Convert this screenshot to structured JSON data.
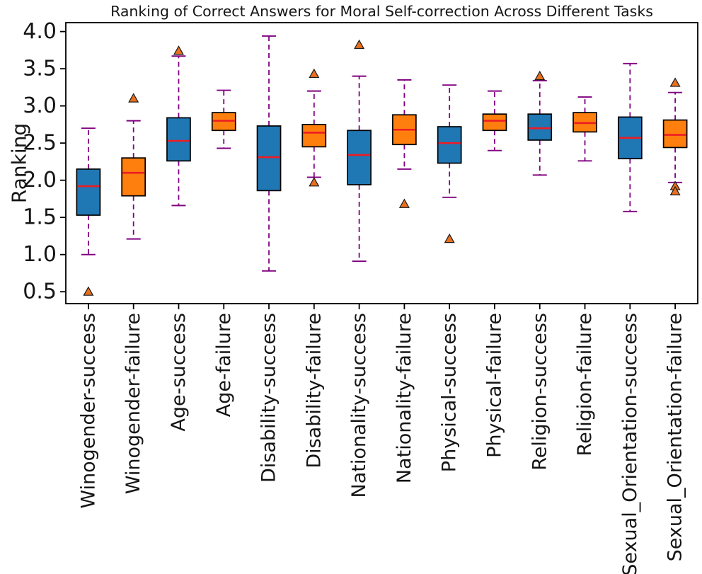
{
  "chart_data": {
    "type": "boxplot",
    "title": "Ranking of Correct Answers for Moral Self-correction Across Different Tasks",
    "ylabel": "Ranking",
    "ylim": [
      0.34,
      4.12
    ],
    "yticks": [
      4.0,
      3.5,
      3.0,
      2.5,
      2.0,
      1.5,
      1.0,
      0.5
    ],
    "grid": false,
    "legend": null,
    "categories": [
      "Winogender-success",
      "Winogender-failure",
      "Age-success",
      "Age-failure",
      "Disability-success",
      "Disability-failure",
      "Nationality-success",
      "Nationality-failure",
      "Physical-success",
      "Physical-failure",
      "Religion-success",
      "Religion-failure",
      "Sexual_Orientation-success",
      "Sexual_Orientation-failure"
    ],
    "boxes": [
      {
        "label": "Winogender-success",
        "variant": "success",
        "whislo": 1.0,
        "q1": 1.53,
        "med": 1.92,
        "q3": 2.15,
        "whishi": 2.7,
        "fliers": [
          0.5
        ]
      },
      {
        "label": "Winogender-failure",
        "variant": "failure",
        "whislo": 1.21,
        "q1": 1.79,
        "med": 2.1,
        "q3": 2.3,
        "whishi": 2.8,
        "fliers": [
          3.1
        ]
      },
      {
        "label": "Age-success",
        "variant": "success",
        "whislo": 1.66,
        "q1": 2.26,
        "med": 2.53,
        "q3": 2.84,
        "whishi": 3.67,
        "fliers": [
          3.74
        ]
      },
      {
        "label": "Age-failure",
        "variant": "failure",
        "whislo": 2.43,
        "q1": 2.67,
        "med": 2.8,
        "q3": 2.91,
        "whishi": 3.21,
        "fliers": []
      },
      {
        "label": "Disability-success",
        "variant": "success",
        "whislo": 0.78,
        "q1": 1.86,
        "med": 2.31,
        "q3": 2.73,
        "whishi": 3.94,
        "fliers": []
      },
      {
        "label": "Disability-failure",
        "variant": "failure",
        "whislo": 2.04,
        "q1": 2.45,
        "med": 2.64,
        "q3": 2.75,
        "whishi": 3.2,
        "fliers": [
          3.43,
          1.97
        ]
      },
      {
        "label": "Nationality-success",
        "variant": "success",
        "whislo": 0.91,
        "q1": 1.94,
        "med": 2.34,
        "q3": 2.67,
        "whishi": 3.4,
        "fliers": [
          3.82
        ]
      },
      {
        "label": "Nationality-failure",
        "variant": "failure",
        "whislo": 2.15,
        "q1": 2.48,
        "med": 2.68,
        "q3": 2.88,
        "whishi": 3.35,
        "fliers": [
          1.68
        ]
      },
      {
        "label": "Physical-success",
        "variant": "success",
        "whislo": 1.77,
        "q1": 2.23,
        "med": 2.5,
        "q3": 2.72,
        "whishi": 3.28,
        "fliers": [
          1.21
        ]
      },
      {
        "label": "Physical-failure",
        "variant": "failure",
        "whislo": 2.4,
        "q1": 2.67,
        "med": 2.8,
        "q3": 2.89,
        "whishi": 3.2,
        "fliers": []
      },
      {
        "label": "Religion-success",
        "variant": "success",
        "whislo": 2.07,
        "q1": 2.54,
        "med": 2.7,
        "q3": 2.89,
        "whishi": 3.34,
        "fliers": [
          3.4
        ]
      },
      {
        "label": "Religion-failure",
        "variant": "failure",
        "whislo": 2.26,
        "q1": 2.65,
        "med": 2.77,
        "q3": 2.91,
        "whishi": 3.12,
        "fliers": []
      },
      {
        "label": "Sexual_Orientation-success",
        "variant": "success",
        "whislo": 1.58,
        "q1": 2.29,
        "med": 2.57,
        "q3": 2.85,
        "whishi": 3.57,
        "fliers": []
      },
      {
        "label": "Sexual_Orientation-failure",
        "variant": "failure",
        "whislo": 1.97,
        "q1": 2.44,
        "med": 2.61,
        "q3": 2.81,
        "whishi": 3.18,
        "fliers": [
          3.31,
          1.92,
          1.85
        ]
      }
    ],
    "colors": {
      "success_box": "#1f77b4",
      "failure_box": "#ff7f0e",
      "median": "#ed1c24",
      "whisker": "#800080",
      "flier_fill": "#e8701e",
      "edge": "#000000",
      "text": "#151515"
    }
  }
}
